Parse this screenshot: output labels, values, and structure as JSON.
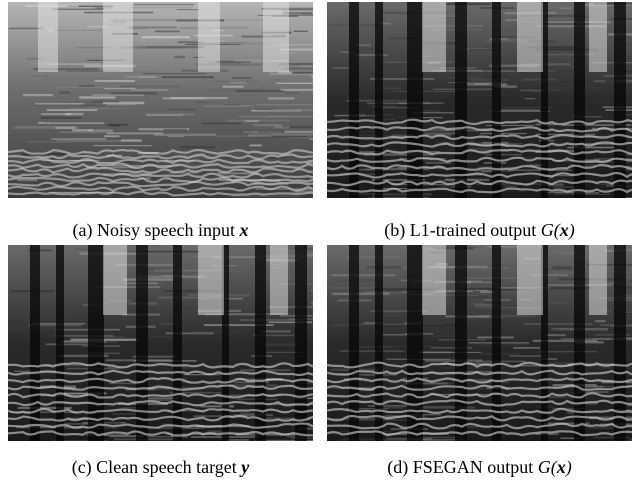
{
  "panels": [
    {
      "id": "a",
      "label": "(a) Noisy speech input ",
      "math_parts": [
        {
          "t": "x",
          "bold": true
        }
      ],
      "kind": "noisy"
    },
    {
      "id": "b",
      "label": "(b) L1-trained output ",
      "math_parts": [
        {
          "t": "G(",
          "bold": false
        },
        {
          "t": "x",
          "bold": true
        },
        {
          "t": ")",
          "bold": false
        }
      ],
      "kind": "l1"
    },
    {
      "id": "c",
      "label": "(c) Clean speech target ",
      "math_parts": [
        {
          "t": "y",
          "bold": true
        }
      ],
      "kind": "clean"
    },
    {
      "id": "d",
      "label": "(d) FSEGAN output ",
      "math_parts": [
        {
          "t": "G(",
          "bold": false
        },
        {
          "t": "x",
          "bold": true
        },
        {
          "t": ")",
          "bold": false
        }
      ],
      "kind": "fsegan"
    }
  ]
}
